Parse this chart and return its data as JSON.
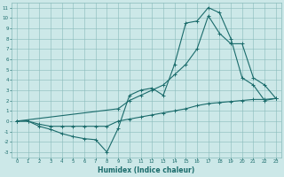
{
  "xlabel": "Humidex (Indice chaleur)",
  "bg_color": "#cce8e8",
  "grid_color": "#88bbbb",
  "line_color": "#1a6b6b",
  "xlim": [
    -0.5,
    23.5
  ],
  "ylim": [
    -3.5,
    11.5
  ],
  "xticks": [
    0,
    1,
    2,
    3,
    4,
    5,
    6,
    7,
    8,
    9,
    10,
    11,
    12,
    13,
    14,
    15,
    16,
    17,
    18,
    19,
    20,
    21,
    22,
    23
  ],
  "yticks": [
    -3,
    -2,
    -1,
    0,
    1,
    2,
    3,
    4,
    5,
    6,
    7,
    8,
    9,
    10,
    11
  ],
  "line1_x": [
    0,
    1,
    2,
    3,
    4,
    5,
    6,
    7,
    8,
    9,
    10,
    11,
    12,
    13,
    14,
    15,
    16,
    17,
    18,
    19,
    20,
    21,
    22,
    23
  ],
  "line1_y": [
    0,
    0,
    -0.5,
    -0.8,
    -1.2,
    -1.5,
    -1.7,
    -1.8,
    -3.0,
    -0.7,
    2.5,
    3.0,
    3.2,
    2.5,
    5.5,
    9.5,
    9.7,
    11.0,
    10.5,
    8.0,
    4.2,
    3.5,
    2.0,
    2.2
  ],
  "line2_x": [
    0,
    9,
    10,
    11,
    12,
    13,
    14,
    15,
    16,
    17,
    18,
    19,
    20,
    21,
    22,
    23
  ],
  "line2_y": [
    0,
    1.2,
    2.0,
    2.5,
    3.0,
    3.5,
    4.5,
    5.5,
    7.0,
    10.2,
    8.5,
    7.5,
    7.5,
    4.2,
    3.5,
    2.2
  ],
  "line3_x": [
    0,
    1,
    2,
    3,
    4,
    5,
    6,
    7,
    8,
    9,
    10,
    11,
    12,
    13,
    14,
    15,
    16,
    17,
    18,
    19,
    20,
    21,
    22,
    23
  ],
  "line3_y": [
    0,
    0,
    -0.3,
    -0.5,
    -0.5,
    -0.5,
    -0.5,
    -0.5,
    -0.5,
    0.0,
    0.2,
    0.4,
    0.6,
    0.8,
    1.0,
    1.2,
    1.5,
    1.7,
    1.8,
    1.9,
    2.0,
    2.1,
    2.1,
    2.2
  ]
}
